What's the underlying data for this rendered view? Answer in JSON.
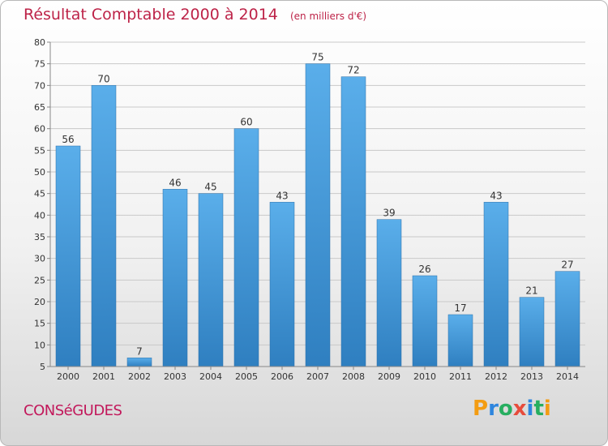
{
  "header": {
    "title": "Résultat Comptable 2000 à 2014",
    "unit": "(en milliers d'€)"
  },
  "footer": {
    "commune": "CONSéGUDES",
    "brand_letters": [
      {
        "ch": "P",
        "color": "#f39c12"
      },
      {
        "ch": "r",
        "color": "#2e86de"
      },
      {
        "ch": "o",
        "color": "#27ae60"
      },
      {
        "ch": "x",
        "color": "#e74c3c"
      },
      {
        "ch": "i",
        "color": "#2e86de"
      },
      {
        "ch": "t",
        "color": "#27ae60"
      },
      {
        "ch": "i",
        "color": "#f39c12"
      }
    ]
  },
  "colors": {
    "title": "#bd2348",
    "bar_top": "#5aaeea",
    "bar_bottom": "#2f7fc0",
    "grid": "#c9c9c9",
    "axis_text": "#333333"
  },
  "chart_data": {
    "type": "bar",
    "title": "Résultat Comptable 2000 à 2014",
    "subtitle": "(en milliers d'€)",
    "categories": [
      "2000",
      "2001",
      "2002",
      "2003",
      "2004",
      "2005",
      "2006",
      "2007",
      "2008",
      "2009",
      "2010",
      "2011",
      "2012",
      "2013",
      "2014"
    ],
    "values": [
      56,
      70,
      7,
      46,
      45,
      60,
      43,
      75,
      72,
      39,
      26,
      17,
      43,
      21,
      27
    ],
    "ylim": [
      5,
      80
    ],
    "yticks": [
      5,
      10,
      15,
      20,
      25,
      30,
      35,
      40,
      45,
      50,
      55,
      60,
      65,
      70,
      75,
      80
    ],
    "grid": true,
    "data_labels": true
  }
}
